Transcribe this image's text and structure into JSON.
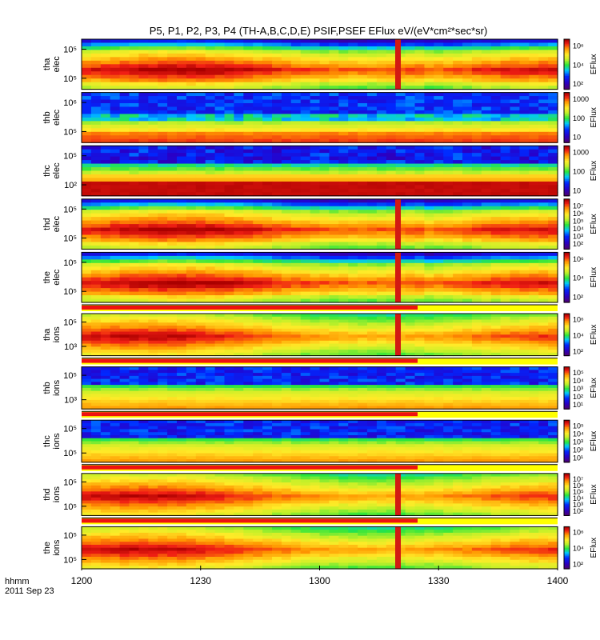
{
  "chart_data": {
    "type": "heatmap",
    "title": "P5, P1, P2, P3, P4 (TH-A,B,C,D,E) PSIF,PSEF EFlux eV/(eV*cm²*sec*sr)",
    "x_axis": {
      "ticks": [
        "1200",
        "1230",
        "1300",
        "1330",
        "1400"
      ],
      "row_label": "hhmm",
      "date_label": "2011 Sep 23"
    },
    "colorbar_label": "EFlux",
    "panels": [
      {
        "probe": "tha",
        "species": "elec",
        "y_ticks": [
          "10⁵",
          "10⁵"
        ],
        "cbar_ticks": [
          "10⁶",
          "10⁴",
          "10²"
        ],
        "profile": "elec_active",
        "has_flag_bar": false
      },
      {
        "probe": "thb",
        "species": "elec",
        "y_ticks": [
          "10⁶",
          "10⁵"
        ],
        "cbar_ticks": [
          "1000",
          "100",
          "10"
        ],
        "profile": "elec_quiet_b",
        "has_flag_bar": false
      },
      {
        "probe": "thc",
        "species": "elec",
        "y_ticks": [
          "10⁵",
          "10²"
        ],
        "cbar_ticks": [
          "1000",
          "100",
          "10"
        ],
        "profile": "elec_quiet_c",
        "has_flag_bar": false
      },
      {
        "probe": "thd",
        "species": "elec",
        "y_ticks": [
          "10⁵",
          "10⁵"
        ],
        "cbar_ticks": [
          "10⁷",
          "10⁶",
          "10⁵",
          "10⁴",
          "10³",
          "10²"
        ],
        "profile": "elec_active",
        "has_flag_bar": false
      },
      {
        "probe": "the",
        "species": "elec",
        "y_ticks": [
          "10⁵",
          "10⁵"
        ],
        "cbar_ticks": [
          "10⁶",
          "10⁴",
          "10²"
        ],
        "profile": "elec_active",
        "has_flag_bar": false
      },
      {
        "probe": "tha",
        "species": "ions",
        "y_ticks": [
          "10⁵",
          "10³"
        ],
        "cbar_ticks": [
          "10⁶",
          "10⁴",
          "10²"
        ],
        "profile": "ions_active",
        "has_flag_bar": true
      },
      {
        "probe": "thb",
        "species": "ions",
        "y_ticks": [
          "10⁵",
          "10³"
        ],
        "cbar_ticks": [
          "10⁵",
          "10⁴",
          "10³",
          "10²",
          "10¹"
        ],
        "profile": "ions_quiet",
        "has_flag_bar": true
      },
      {
        "probe": "thc",
        "species": "ions",
        "y_ticks": [
          "10⁵",
          "10⁵"
        ],
        "cbar_ticks": [
          "10⁵",
          "10⁴",
          "10³",
          "10²",
          "10¹"
        ],
        "profile": "ions_quiet",
        "has_flag_bar": true
      },
      {
        "probe": "thd",
        "species": "ions",
        "y_ticks": [
          "10⁵",
          "10⁵"
        ],
        "cbar_ticks": [
          "10⁷",
          "10⁶",
          "10⁵",
          "10⁴",
          "10³",
          "10²"
        ],
        "profile": "ions_active",
        "has_flag_bar": true
      },
      {
        "probe": "the",
        "species": "ions",
        "y_ticks": [
          "10⁵",
          "10⁵"
        ],
        "cbar_ticks": [
          "10⁶",
          "10⁴",
          "10²"
        ],
        "profile": "ions_active",
        "has_flag_bar": true
      }
    ]
  }
}
